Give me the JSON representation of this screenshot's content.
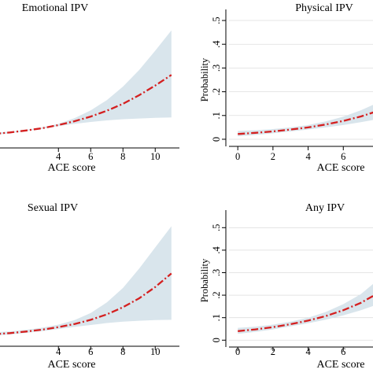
{
  "chart_data": [
    {
      "type": "line",
      "title": "Emotional IPV",
      "xlabel": "ACE score",
      "ylabel": "",
      "xticks": [
        4,
        6,
        8,
        10
      ],
      "yticks": [],
      "xlim": [
        -0.5,
        11.5
      ],
      "ylim": [
        -0.03,
        0.6
      ],
      "grid": true,
      "series": [
        {
          "x": [
            0,
            1,
            2,
            3,
            4,
            5,
            6,
            7,
            8,
            9,
            10,
            11
          ],
          "y": [
            0.03,
            0.038,
            0.048,
            0.06,
            0.076,
            0.096,
            0.12,
            0.15,
            0.186,
            0.23,
            0.28,
            0.335
          ],
          "ci_low": [
            0.025,
            0.034,
            0.045,
            0.057,
            0.071,
            0.082,
            0.092,
            0.1,
            0.106,
            0.11,
            0.113,
            0.115
          ],
          "ci_high": [
            0.036,
            0.042,
            0.051,
            0.064,
            0.082,
            0.112,
            0.152,
            0.205,
            0.275,
            0.36,
            0.46,
            0.565
          ]
        }
      ],
      "colors": {
        "line": "#d42020",
        "band": "#d9e5ec"
      }
    },
    {
      "type": "line",
      "title": "Physical IPV",
      "xlabel": "ACE score",
      "ylabel": "Probability",
      "xticks": [
        0,
        2,
        4,
        6
      ],
      "yticks": [
        "0",
        ".1",
        ".2",
        ".3",
        ".4",
        ".5"
      ],
      "ytick_values": [
        0,
        0.1,
        0.2,
        0.3,
        0.4,
        0.5
      ],
      "xlim": [
        -0.5,
        11
      ],
      "ylim": [
        -0.02,
        0.52
      ],
      "grid": true,
      "series": [
        {
          "x": [
            0,
            1,
            2,
            3,
            4,
            5,
            6,
            7,
            8
          ],
          "y": [
            0.022,
            0.027,
            0.033,
            0.041,
            0.05,
            0.062,
            0.077,
            0.096,
            0.12
          ],
          "ci_low": [
            0.012,
            0.018,
            0.025,
            0.033,
            0.041,
            0.05,
            0.06,
            0.072,
            0.085
          ],
          "ci_high": [
            0.035,
            0.038,
            0.043,
            0.05,
            0.06,
            0.075,
            0.095,
            0.122,
            0.155
          ]
        }
      ],
      "colors": {
        "line": "#d42020",
        "band": "#d9e5ec"
      }
    },
    {
      "type": "line",
      "title": "Sexual IPV",
      "xlabel": "ACE score",
      "ylabel": "",
      "xticks": [
        4,
        6,
        8,
        10
      ],
      "yticks": [],
      "xlim": [
        -0.5,
        11.5
      ],
      "ylim": [
        -0.02,
        0.6
      ],
      "grid": true,
      "series": [
        {
          "x": [
            0,
            1,
            2,
            3,
            4,
            5,
            6,
            7,
            8,
            9,
            10,
            11
          ],
          "y": [
            0.03,
            0.036,
            0.044,
            0.054,
            0.067,
            0.083,
            0.105,
            0.133,
            0.17,
            0.216,
            0.275,
            0.345
          ],
          "ci_low": [
            0.022,
            0.029,
            0.037,
            0.046,
            0.057,
            0.068,
            0.078,
            0.088,
            0.095,
            0.1,
            0.103,
            0.105
          ],
          "ci_high": [
            0.04,
            0.045,
            0.053,
            0.064,
            0.08,
            0.103,
            0.14,
            0.195,
            0.27,
            0.37,
            0.48,
            0.59
          ]
        }
      ],
      "colors": {
        "line": "#d42020",
        "band": "#d9e5ec"
      }
    },
    {
      "type": "line",
      "title": "Any IPV",
      "xlabel": "ACE score",
      "ylabel": "Probability",
      "xticks": [
        0,
        2,
        4,
        6
      ],
      "yticks": [
        "0",
        ".1",
        ".2",
        ".3",
        ".4",
        ".5"
      ],
      "ytick_values": [
        0,
        0.1,
        0.2,
        0.3,
        0.4,
        0.5
      ],
      "xlim": [
        -0.5,
        11
      ],
      "ylim": [
        -0.02,
        0.55
      ],
      "grid": true,
      "series": [
        {
          "x": [
            0,
            1,
            2,
            3,
            4,
            5,
            6,
            7,
            8
          ],
          "y": [
            0.04,
            0.048,
            0.058,
            0.071,
            0.087,
            0.107,
            0.133,
            0.166,
            0.21
          ],
          "ci_low": [
            0.028,
            0.037,
            0.048,
            0.061,
            0.075,
            0.091,
            0.11,
            0.133,
            0.16
          ],
          "ci_high": [
            0.055,
            0.06,
            0.069,
            0.082,
            0.1,
            0.125,
            0.16,
            0.205,
            0.27
          ]
        }
      ],
      "colors": {
        "line": "#d42020",
        "band": "#d9e5ec"
      }
    }
  ]
}
